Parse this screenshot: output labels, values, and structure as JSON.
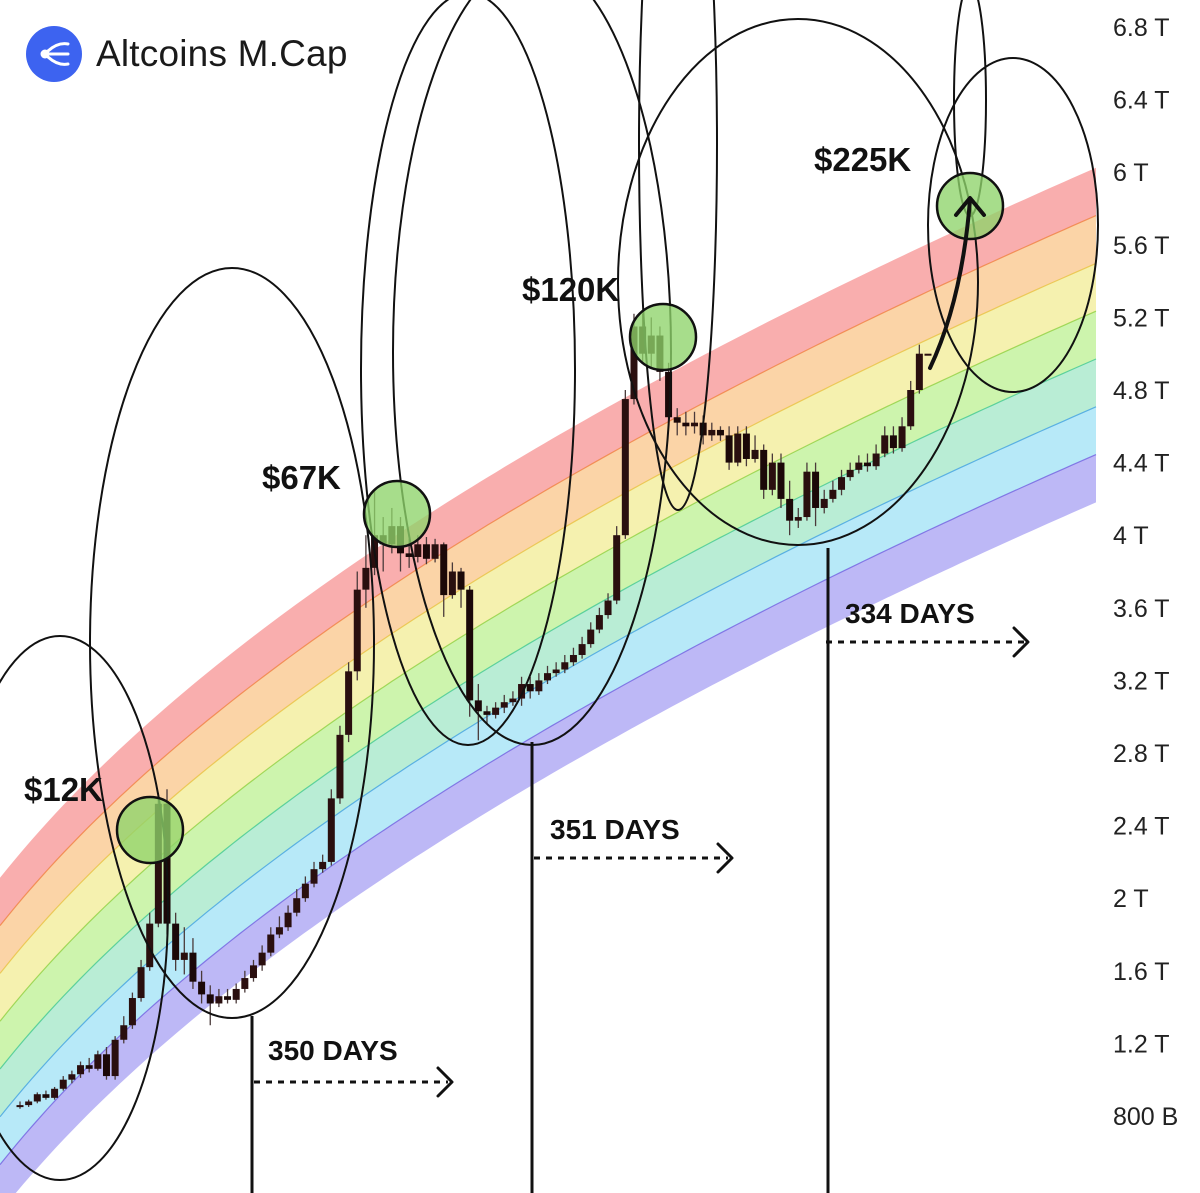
{
  "brand": {
    "name": "Altcoins M.Cap",
    "logo_color": "#3d63f0",
    "logo_icon": "fan-lines-icon"
  },
  "chart_data": {
    "type": "candlestick",
    "title": "Altcoins M.Cap",
    "y_unit": "USD market cap",
    "yticks": [
      "6.8 T",
      "6.4 T",
      "6 T",
      "5.6 T",
      "5.2 T",
      "4.8 T",
      "4.4 T",
      "4 T",
      "3.6 T",
      "3.2 T",
      "2.8 T",
      "2.4 T",
      "2 T",
      "1.6 T",
      "1.2 T",
      "800 B"
    ],
    "ytick_values": [
      6.8,
      6.4,
      6.0,
      5.6,
      5.2,
      4.8,
      4.4,
      4.0,
      3.6,
      3.2,
      2.8,
      2.4,
      2.0,
      1.6,
      1.2,
      0.8
    ],
    "ylim": [
      0.7,
      6.95
    ],
    "rainbow_bands": [
      "#f9a7a7",
      "#fbd0a0",
      "#f4f0a8",
      "#c9f3a6",
      "#b3ecd1",
      "#b1e7f7",
      "#b7b2f5"
    ],
    "rainbow_edge_colors": [
      "#e26060",
      "#f08040",
      "#e8c040",
      "#90d040",
      "#40c890",
      "#40a0e0",
      "#7060e0"
    ],
    "candles": [
      [
        0.85,
        0.86,
        0.84,
        0.88
      ],
      [
        0.86,
        0.88,
        0.85,
        0.89
      ],
      [
        0.88,
        0.92,
        0.87,
        0.93
      ],
      [
        0.92,
        0.9,
        0.89,
        0.94
      ],
      [
        0.9,
        0.95,
        0.89,
        0.96
      ],
      [
        0.95,
        1.0,
        0.94,
        1.02
      ],
      [
        1.0,
        1.03,
        0.98,
        1.05
      ],
      [
        1.03,
        1.08,
        1.01,
        1.1
      ],
      [
        1.08,
        1.06,
        1.04,
        1.12
      ],
      [
        1.06,
        1.14,
        1.05,
        1.16
      ],
      [
        1.14,
        1.02,
        1.0,
        1.18
      ],
      [
        1.02,
        1.22,
        1.0,
        1.24
      ],
      [
        1.22,
        1.3,
        1.2,
        1.35
      ],
      [
        1.3,
        1.45,
        1.28,
        1.48
      ],
      [
        1.45,
        1.62,
        1.43,
        1.66
      ],
      [
        1.62,
        1.86,
        1.6,
        1.92
      ],
      [
        1.86,
        2.52,
        1.84,
        2.58
      ],
      [
        2.52,
        1.86,
        1.8,
        2.6
      ],
      [
        1.86,
        1.66,
        1.6,
        1.92
      ],
      [
        1.66,
        1.7,
        1.58,
        1.84
      ],
      [
        1.7,
        1.54,
        1.5,
        1.78
      ],
      [
        1.54,
        1.47,
        1.42,
        1.6
      ],
      [
        1.47,
        1.42,
        1.3,
        1.52
      ],
      [
        1.42,
        1.46,
        1.4,
        1.5
      ],
      [
        1.46,
        1.44,
        1.42,
        1.5
      ],
      [
        1.44,
        1.5,
        1.42,
        1.53
      ],
      [
        1.5,
        1.56,
        1.48,
        1.6
      ],
      [
        1.56,
        1.63,
        1.54,
        1.66
      ],
      [
        1.63,
        1.7,
        1.6,
        1.74
      ],
      [
        1.7,
        1.8,
        1.68,
        1.84
      ],
      [
        1.8,
        1.84,
        1.78,
        1.9
      ],
      [
        1.84,
        1.92,
        1.82,
        1.96
      ],
      [
        1.92,
        2.0,
        1.9,
        2.05
      ],
      [
        2.0,
        2.08,
        1.98,
        2.12
      ],
      [
        2.08,
        2.16,
        2.06,
        2.2
      ],
      [
        2.16,
        2.2,
        2.14,
        2.24
      ],
      [
        2.2,
        2.55,
        2.18,
        2.6
      ],
      [
        2.55,
        2.9,
        2.52,
        2.95
      ],
      [
        2.9,
        3.25,
        2.86,
        3.3
      ],
      [
        3.25,
        3.7,
        3.2,
        3.8
      ],
      [
        3.7,
        3.82,
        3.6,
        4.0
      ],
      [
        3.82,
        4.0,
        3.78,
        4.25
      ],
      [
        4.0,
        3.95,
        3.8,
        4.1
      ],
      [
        3.95,
        4.05,
        3.9,
        4.15
      ],
      [
        4.05,
        3.9,
        3.8,
        4.1
      ],
      [
        3.9,
        3.88,
        3.82,
        3.98
      ],
      [
        3.88,
        3.95,
        3.85,
        4.0
      ],
      [
        3.95,
        3.87,
        3.84,
        3.99
      ],
      [
        3.87,
        3.95,
        3.85,
        3.98
      ],
      [
        3.95,
        3.67,
        3.55,
        3.96
      ],
      [
        3.67,
        3.8,
        3.65,
        3.85
      ],
      [
        3.8,
        3.7,
        3.6,
        3.82
      ],
      [
        3.7,
        3.09,
        3.0,
        3.72
      ],
      [
        3.09,
        3.03,
        2.87,
        3.18
      ],
      [
        3.03,
        3.01,
        2.96,
        3.06
      ],
      [
        3.01,
        3.05,
        2.99,
        3.08
      ],
      [
        3.05,
        3.08,
        3.02,
        3.12
      ],
      [
        3.08,
        3.1,
        3.06,
        3.14
      ],
      [
        3.1,
        3.18,
        3.06,
        3.22
      ],
      [
        3.18,
        3.14,
        3.1,
        3.22
      ],
      [
        3.14,
        3.2,
        3.12,
        3.24
      ],
      [
        3.2,
        3.24,
        3.18,
        3.28
      ],
      [
        3.24,
        3.26,
        3.22,
        3.3
      ],
      [
        3.26,
        3.3,
        3.24,
        3.34
      ],
      [
        3.3,
        3.34,
        3.28,
        3.38
      ],
      [
        3.34,
        3.4,
        3.32,
        3.44
      ],
      [
        3.4,
        3.48,
        3.38,
        3.52
      ],
      [
        3.48,
        3.56,
        3.46,
        3.6
      ],
      [
        3.56,
        3.64,
        3.54,
        3.68
      ],
      [
        3.64,
        4.0,
        3.62,
        4.05
      ],
      [
        4.0,
        4.75,
        3.98,
        4.8
      ],
      [
        4.75,
        5.15,
        4.72,
        5.22
      ],
      [
        5.15,
        5.0,
        4.95,
        5.22
      ],
      [
        5.0,
        5.1,
        4.92,
        5.2
      ],
      [
        5.1,
        4.9,
        4.85,
        5.15
      ],
      [
        4.9,
        4.65,
        4.6,
        4.95
      ],
      [
        4.65,
        4.62,
        4.55,
        4.7
      ],
      [
        4.62,
        4.6,
        4.55,
        4.68
      ],
      [
        4.6,
        4.62,
        4.56,
        4.68
      ],
      [
        4.62,
        4.55,
        4.5,
        4.66
      ],
      [
        4.55,
        4.58,
        4.52,
        4.62
      ],
      [
        4.58,
        4.55,
        4.52,
        4.6
      ],
      [
        4.55,
        4.4,
        4.36,
        4.6
      ],
      [
        4.4,
        4.56,
        4.38,
        4.6
      ],
      [
        4.56,
        4.42,
        4.38,
        4.6
      ],
      [
        4.42,
        4.47,
        4.4,
        4.55
      ],
      [
        4.47,
        4.25,
        4.2,
        4.5
      ],
      [
        4.25,
        4.4,
        4.22,
        4.45
      ],
      [
        4.4,
        4.2,
        4.15,
        4.45
      ],
      [
        4.2,
        4.08,
        4.0,
        4.3
      ],
      [
        4.08,
        4.1,
        4.04,
        4.15
      ],
      [
        4.1,
        4.35,
        4.08,
        4.4
      ],
      [
        4.35,
        4.15,
        4.05,
        4.4
      ],
      [
        4.15,
        4.2,
        4.12,
        4.25
      ],
      [
        4.2,
        4.25,
        4.18,
        4.3
      ],
      [
        4.25,
        4.32,
        4.22,
        4.36
      ],
      [
        4.32,
        4.36,
        4.3,
        4.4
      ],
      [
        4.36,
        4.4,
        4.34,
        4.44
      ],
      [
        4.4,
        4.38,
        4.35,
        4.45
      ],
      [
        4.38,
        4.45,
        4.36,
        4.5
      ],
      [
        4.45,
        4.55,
        4.43,
        4.6
      ],
      [
        4.55,
        4.48,
        4.45,
        4.6
      ],
      [
        4.48,
        4.6,
        4.46,
        4.65
      ],
      [
        4.6,
        4.8,
        4.58,
        4.85
      ],
      [
        4.8,
        5.0,
        4.78,
        5.05
      ],
      [
        5.0,
        5.0,
        5.0,
        5.0
      ]
    ],
    "peaks": [
      {
        "label": "$12K",
        "value": 2.52
      },
      {
        "label": "$67K",
        "value": 4.05
      },
      {
        "label": "$120K",
        "value": 5.15
      },
      {
        "label": "$225K",
        "value": 5.85
      }
    ],
    "cycle_intervals": [
      {
        "label": "350 DAYS"
      },
      {
        "label": "351 DAYS"
      },
      {
        "label": "334 DAYS"
      }
    ]
  }
}
